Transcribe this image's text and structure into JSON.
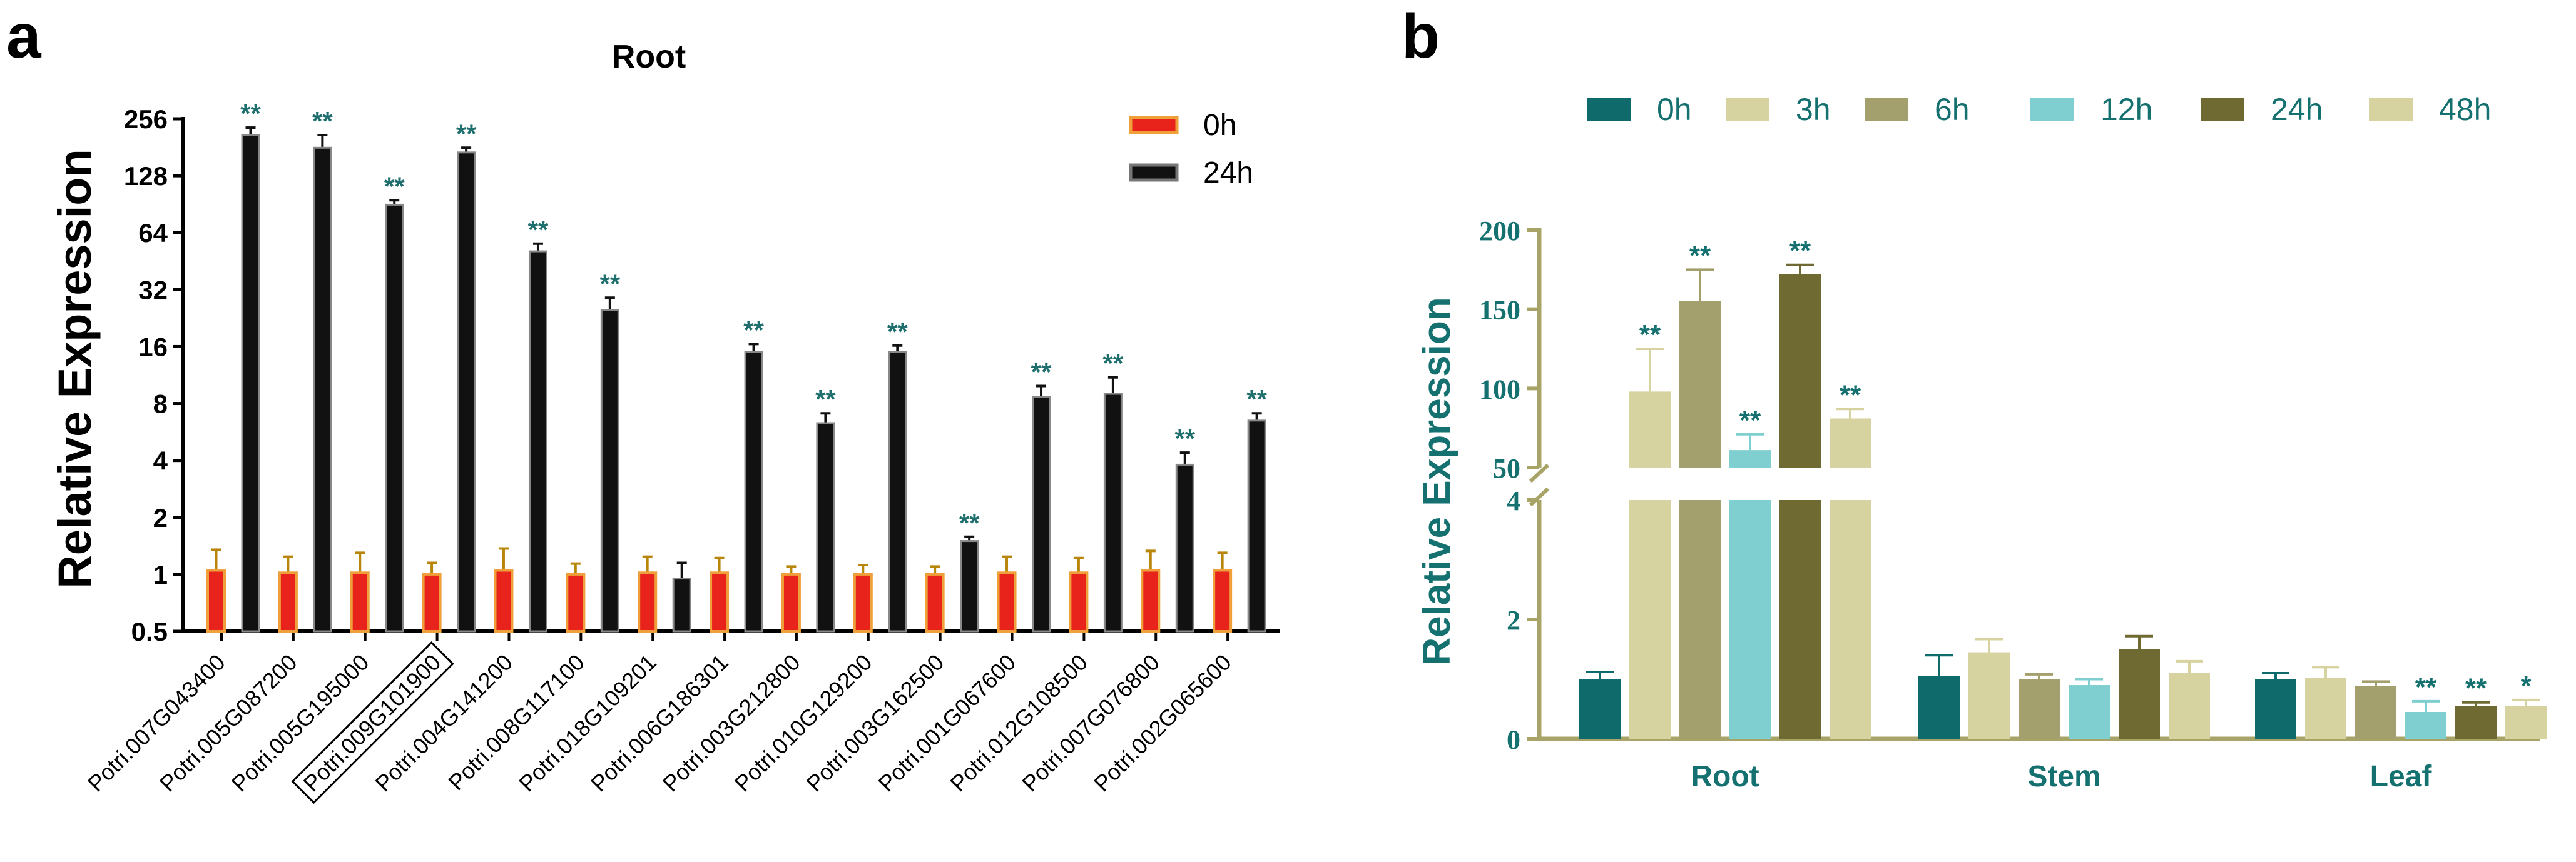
{
  "panel_a_label": "a",
  "panel_b_label": "b",
  "colors": {
    "red_bar": "#e8231c",
    "red_edge": "#b8860b",
    "black_bar": "#111111",
    "sig_teal": "#1f6f6f",
    "b_axis": "#a8a468",
    "b_label": "#157070",
    "b_0h": "#0f6b6b",
    "b_3h": "#d7d3a0",
    "b_6h": "#a3a06d",
    "b_12h": "#7fcfd0",
    "b_24h": "#6e6a32",
    "b_48h": "#d7d3a0"
  },
  "chart_data": [
    {
      "type": "bar",
      "title": "Root",
      "ylabel": "Relative Expression",
      "xlabel": "",
      "yscale": "log2",
      "ylim": [
        0.5,
        256
      ],
      "yticks": [
        "0.5",
        "1",
        "2",
        "4",
        "8",
        "16",
        "32",
        "64",
        "128",
        "256"
      ],
      "categories": [
        "Potri.007G043400",
        "Potri.005G087200",
        "Potri.005G195000",
        "Potri.009G101900",
        "Potri.004G141200",
        "Potri.008G117100",
        "Potri.018G109201",
        "Potri.006G186301",
        "Potri.003G212800",
        "Potri.010G129200",
        "Potri.003G162500",
        "Potri.001G067600",
        "Potri.012G108500",
        "Potri.007G076800",
        "Potri.002G065600"
      ],
      "boxed_category": "Potri.009G101900",
      "series": [
        {
          "name": "0h",
          "values": [
            1.05,
            1.02,
            1.02,
            1.0,
            1.05,
            1.0,
            1.02,
            1.02,
            1.0,
            1.0,
            1.0,
            1.02,
            1.02,
            1.05,
            1.05
          ],
          "errors": [
            0.3,
            0.22,
            0.28,
            0.15,
            0.32,
            0.14,
            0.22,
            0.2,
            0.1,
            0.12,
            0.1,
            0.22,
            0.2,
            0.28,
            0.25
          ]
        },
        {
          "name": "24h",
          "values": [
            210,
            180,
            90,
            170,
            51,
            25,
            0.95,
            15,
            6.3,
            15,
            1.5,
            8.7,
            9,
            3.8,
            6.5
          ],
          "errors": [
            20,
            30,
            5,
            10,
            5,
            4,
            0.2,
            1.5,
            0.8,
            1.2,
            0.08,
            1.2,
            2,
            0.6,
            0.6
          ]
        }
      ],
      "significance": [
        "**",
        "**",
        "**",
        "**",
        "**",
        "**",
        "",
        "**",
        "**",
        "**",
        "**",
        "**",
        "**",
        "**",
        "**"
      ],
      "legend": [
        "0h",
        "24h"
      ]
    },
    {
      "type": "bar",
      "title": "",
      "ylabel": "Relative Expression",
      "xlabel": "",
      "y_axis_break": {
        "lower_range": [
          0,
          4
        ],
        "upper_range": [
          50,
          200
        ]
      },
      "yticks_lower": [
        "0",
        "2",
        "4"
      ],
      "yticks_upper": [
        "50",
        "100",
        "150",
        "200"
      ],
      "categories": [
        "Root",
        "Stem",
        "Leaf"
      ],
      "legend": [
        "0h",
        "3h",
        "6h",
        "12h",
        "24h",
        "48h"
      ],
      "series": [
        {
          "name": "0h",
          "values": [
            1.0,
            1.05,
            1.0
          ],
          "errors": [
            0.12,
            0.35,
            0.1
          ]
        },
        {
          "name": "3h",
          "values": [
            98,
            1.45,
            1.02
          ],
          "errors": [
            27,
            0.22,
            0.18
          ]
        },
        {
          "name": "6h",
          "values": [
            155,
            1.0,
            0.88
          ],
          "errors": [
            20,
            0.08,
            0.08
          ]
        },
        {
          "name": "12h",
          "values": [
            61,
            0.9,
            0.45
          ],
          "errors": [
            10,
            0.1,
            0.18
          ]
        },
        {
          "name": "24h",
          "values": [
            172,
            1.5,
            0.55
          ],
          "errors": [
            6,
            0.22,
            0.06
          ]
        },
        {
          "name": "48h",
          "values": [
            81,
            1.1,
            0.55
          ],
          "errors": [
            6,
            0.2,
            0.1
          ]
        }
      ],
      "significance": [
        [
          "",
          "**",
          "**",
          "**",
          "**",
          "**"
        ],
        [
          "",
          "",
          "",
          "",
          "",
          ""
        ],
        [
          "",
          "",
          "",
          "**",
          "**",
          "*"
        ]
      ]
    }
  ]
}
